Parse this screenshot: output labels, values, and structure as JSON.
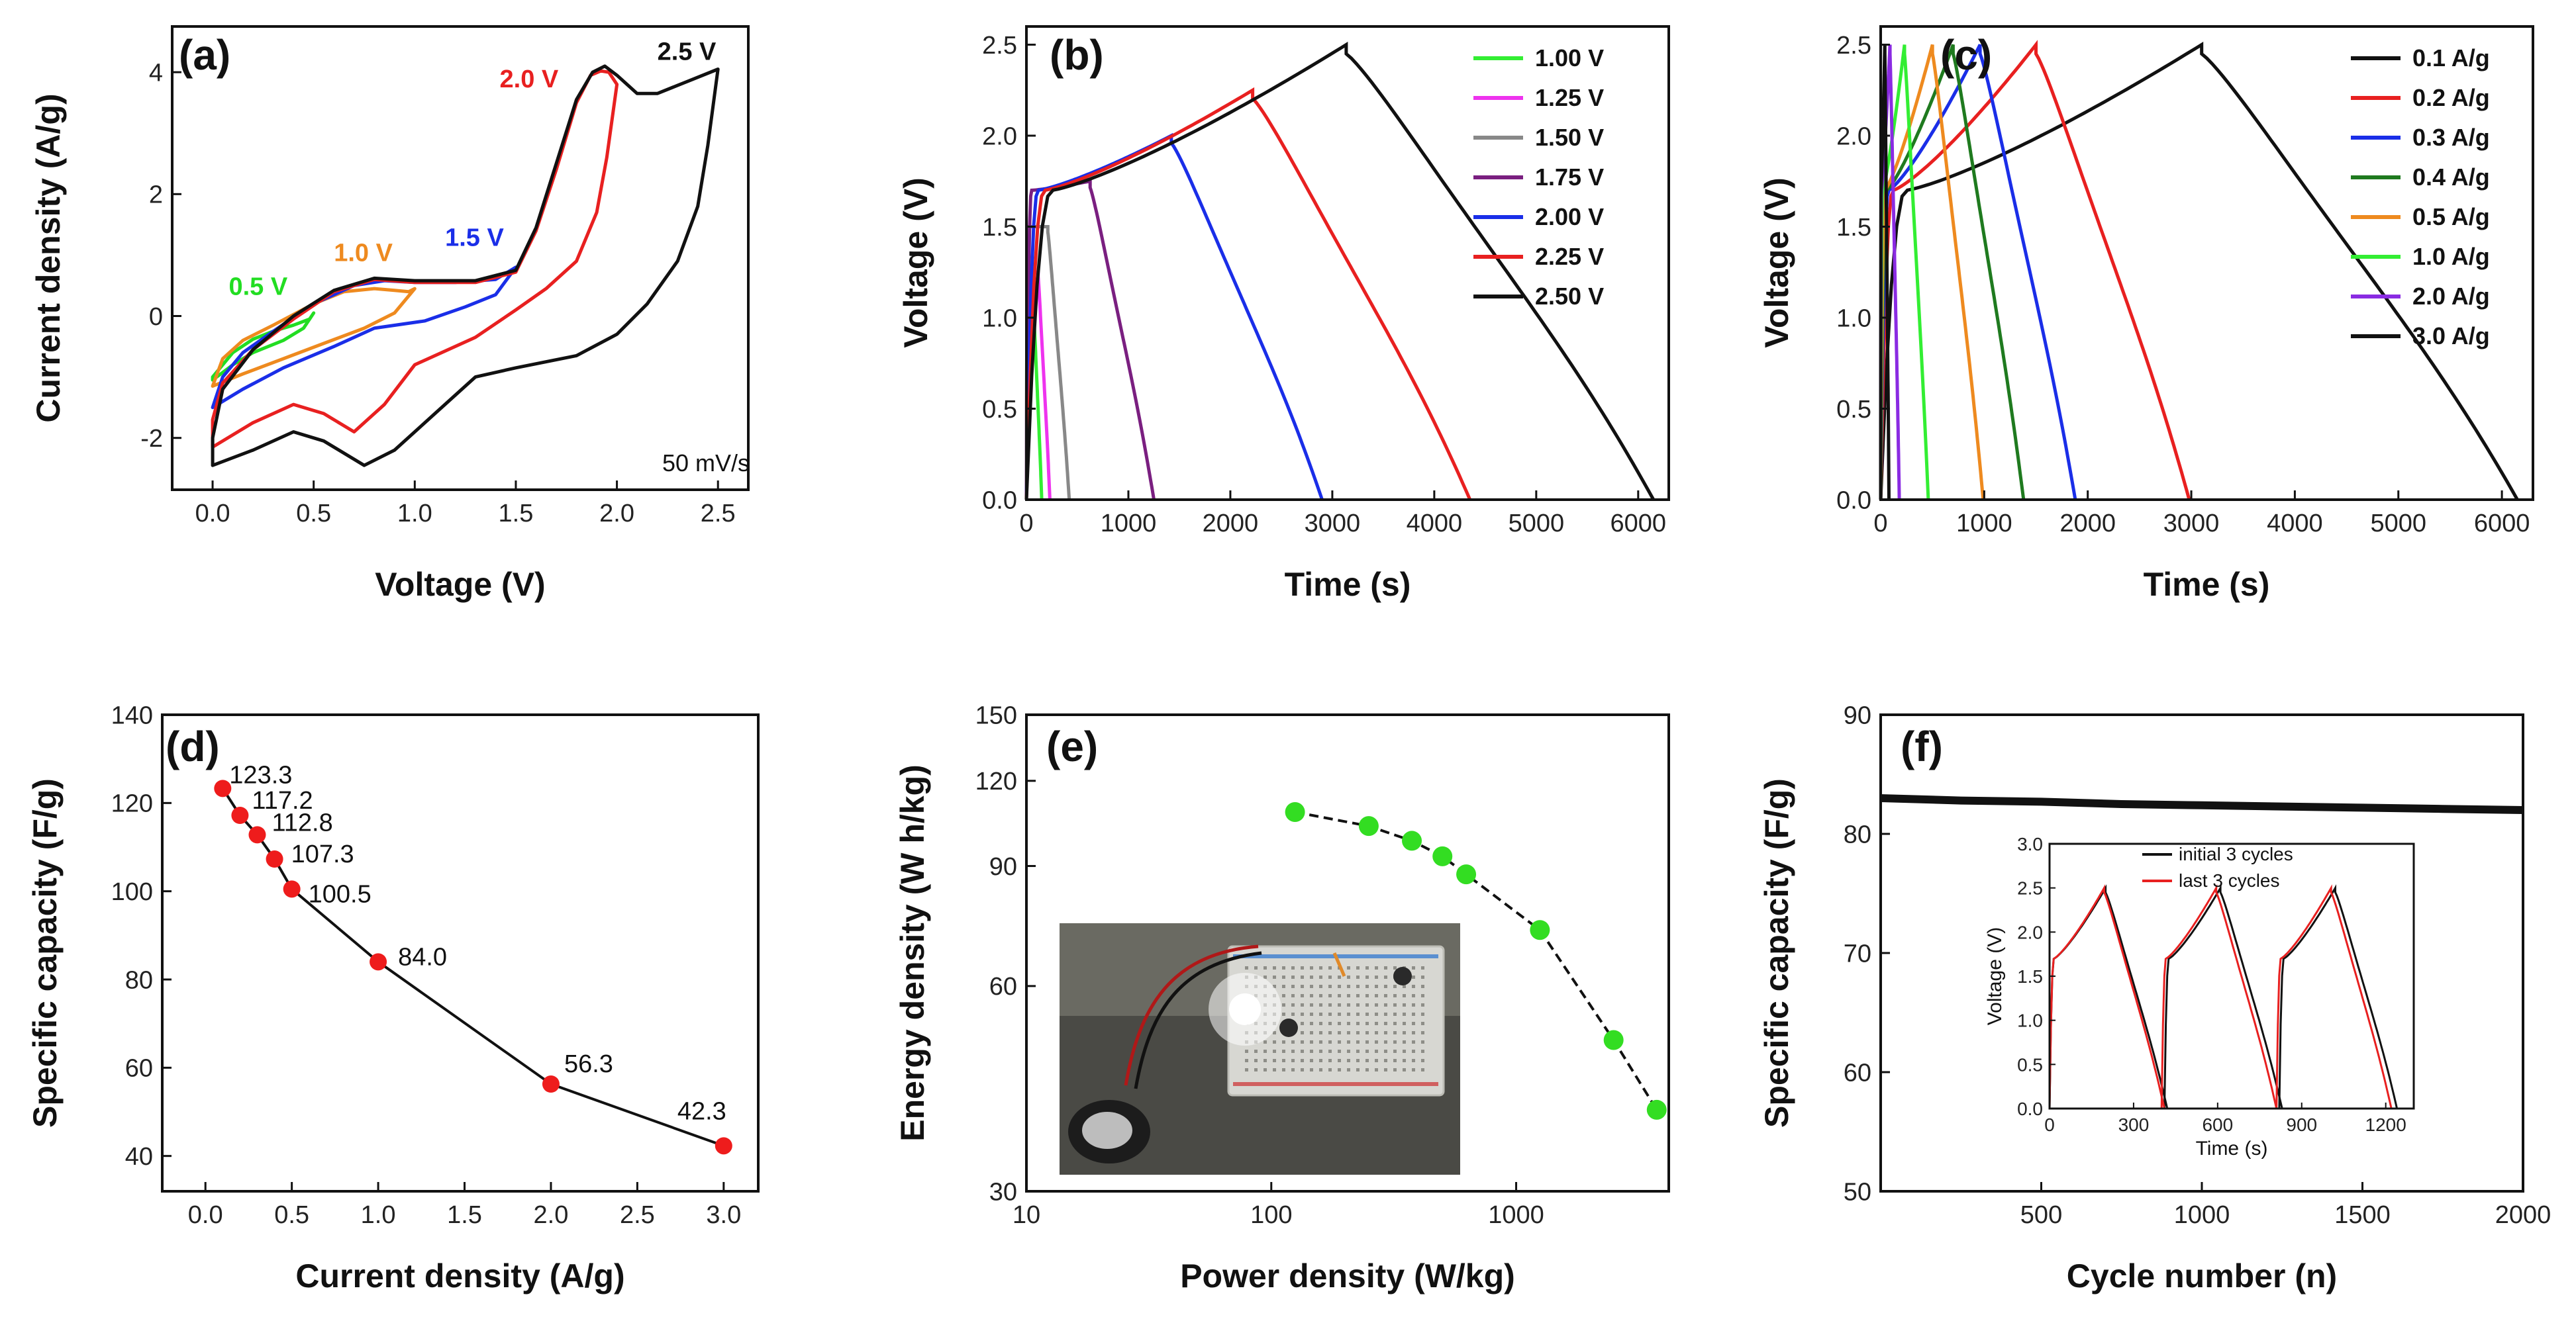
{
  "chart_data": [
    {
      "id": "a",
      "type": "line",
      "panel_label": "(a)",
      "xlabel": "Voltage (V)",
      "ylabel": "Current density (A/g)",
      "xlim": [
        -0.2,
        2.65
      ],
      "ylim": [
        -2.85,
        4.75
      ],
      "xticks": [
        "0.0",
        "0.5",
        "1.0",
        "1.5",
        "2.0",
        "2.5"
      ],
      "xtick_values": [
        0,
        0.5,
        1.0,
        1.5,
        2.0,
        2.5
      ],
      "yticks": [
        "-2",
        "0",
        "2",
        "4"
      ],
      "ytick_values": [
        -2,
        0,
        2,
        4
      ],
      "note": "50 mV/s",
      "series": [
        {
          "name": "0.5 V",
          "label": "0.5 V",
          "color": "#22dd22",
          "label_at": [
            0.08,
            0.35
          ],
          "upper": [
            [
              0.0,
              -1.0
            ],
            [
              0.1,
              -0.6
            ],
            [
              0.2,
              -0.38
            ],
            [
              0.3,
              -0.25
            ],
            [
              0.4,
              -0.15
            ],
            [
              0.48,
              -0.05
            ],
            [
              0.5,
              0.05
            ]
          ],
          "lower": [
            [
              0.5,
              0.05
            ],
            [
              0.45,
              -0.2
            ],
            [
              0.35,
              -0.4
            ],
            [
              0.2,
              -0.6
            ],
            [
              0.1,
              -0.8
            ],
            [
              0.0,
              -1.05
            ]
          ]
        },
        {
          "name": "1.0 V",
          "label": "1.0 V",
          "color": "#ee8a1f",
          "label_at": [
            0.6,
            0.9
          ],
          "upper": [
            [
              0.0,
              -1.15
            ],
            [
              0.05,
              -0.7
            ],
            [
              0.15,
              -0.4
            ],
            [
              0.3,
              -0.15
            ],
            [
              0.5,
              0.2
            ],
            [
              0.65,
              0.4
            ],
            [
              0.8,
              0.45
            ],
            [
              0.9,
              0.42
            ],
            [
              0.97,
              0.4
            ],
            [
              1.0,
              0.45
            ]
          ],
          "lower": [
            [
              1.0,
              0.45
            ],
            [
              0.9,
              0.05
            ],
            [
              0.75,
              -0.2
            ],
            [
              0.55,
              -0.45
            ],
            [
              0.35,
              -0.7
            ],
            [
              0.15,
              -0.95
            ],
            [
              0.0,
              -1.15
            ]
          ]
        },
        {
          "name": "1.5 V",
          "label": "1.5 V",
          "color": "#1a2ee8",
          "label_at": [
            1.15,
            1.15
          ],
          "upper": [
            [
              0.0,
              -1.5
            ],
            [
              0.05,
              -1.0
            ],
            [
              0.15,
              -0.6
            ],
            [
              0.3,
              -0.25
            ],
            [
              0.5,
              0.2
            ],
            [
              0.7,
              0.5
            ],
            [
              0.85,
              0.58
            ],
            [
              1.0,
              0.55
            ],
            [
              1.2,
              0.55
            ],
            [
              1.4,
              0.6
            ],
            [
              1.5,
              0.8
            ]
          ],
          "lower": [
            [
              1.5,
              0.8
            ],
            [
              1.4,
              0.35
            ],
            [
              1.25,
              0.15
            ],
            [
              1.05,
              -0.08
            ],
            [
              0.8,
              -0.2
            ],
            [
              0.6,
              -0.5
            ],
            [
              0.35,
              -0.85
            ],
            [
              0.15,
              -1.2
            ],
            [
              0.0,
              -1.5
            ]
          ]
        },
        {
          "name": "2.0 V",
          "label": "2.0 V",
          "color": "#e82020",
          "label_at": [
            1.42,
            3.75
          ],
          "upper": [
            [
              0.0,
              -1.7
            ],
            [
              0.05,
              -1.1
            ],
            [
              0.2,
              -0.55
            ],
            [
              0.4,
              -0.05
            ],
            [
              0.6,
              0.4
            ],
            [
              0.8,
              0.6
            ],
            [
              1.0,
              0.55
            ],
            [
              1.3,
              0.55
            ],
            [
              1.5,
              0.72
            ],
            [
              1.6,
              1.4
            ],
            [
              1.7,
              2.4
            ],
            [
              1.8,
              3.5
            ],
            [
              1.87,
              3.95
            ],
            [
              1.92,
              4.02
            ],
            [
              1.96,
              4.0
            ],
            [
              2.0,
              3.8
            ]
          ],
          "lower": [
            [
              2.0,
              3.8
            ],
            [
              1.95,
              2.6
            ],
            [
              1.9,
              1.7
            ],
            [
              1.8,
              0.9
            ],
            [
              1.65,
              0.45
            ],
            [
              1.5,
              0.1
            ],
            [
              1.3,
              -0.35
            ],
            [
              1.0,
              -0.8
            ],
            [
              0.85,
              -1.45
            ],
            [
              0.7,
              -1.9
            ],
            [
              0.55,
              -1.6
            ],
            [
              0.4,
              -1.45
            ],
            [
              0.2,
              -1.75
            ],
            [
              0.0,
              -2.15
            ]
          ]
        },
        {
          "name": "2.5 V",
          "label": "2.5 V",
          "color": "#111111",
          "label_at": [
            2.2,
            4.2
          ],
          "upper": [
            [
              0.0,
              -2.0
            ],
            [
              0.05,
              -1.2
            ],
            [
              0.2,
              -0.55
            ],
            [
              0.4,
              0.0
            ],
            [
              0.6,
              0.42
            ],
            [
              0.8,
              0.62
            ],
            [
              1.0,
              0.58
            ],
            [
              1.3,
              0.58
            ],
            [
              1.5,
              0.75
            ],
            [
              1.6,
              1.45
            ],
            [
              1.7,
              2.5
            ],
            [
              1.8,
              3.55
            ],
            [
              1.88,
              4.0
            ],
            [
              1.94,
              4.1
            ],
            [
              2.0,
              3.95
            ],
            [
              2.1,
              3.65
            ],
            [
              2.2,
              3.65
            ],
            [
              2.35,
              3.85
            ],
            [
              2.5,
              4.05
            ]
          ],
          "lower": [
            [
              2.5,
              4.05
            ],
            [
              2.45,
              2.8
            ],
            [
              2.4,
              1.8
            ],
            [
              2.3,
              0.9
            ],
            [
              2.15,
              0.2
            ],
            [
              2.0,
              -0.3
            ],
            [
              1.8,
              -0.65
            ],
            [
              1.5,
              -0.85
            ],
            [
              1.3,
              -1.0
            ],
            [
              1.1,
              -1.6
            ],
            [
              0.9,
              -2.2
            ],
            [
              0.75,
              -2.45
            ],
            [
              0.55,
              -2.05
            ],
            [
              0.4,
              -1.9
            ],
            [
              0.2,
              -2.2
            ],
            [
              0.0,
              -2.45
            ]
          ]
        }
      ]
    },
    {
      "id": "b",
      "type": "line",
      "panel_label": "(b)",
      "xlabel": "Time (s)",
      "ylabel": "Voltage (V)",
      "xlim": [
        0,
        6300
      ],
      "ylim": [
        0,
        2.6
      ],
      "xticks": [
        "0",
        "1000",
        "2000",
        "3000",
        "4000",
        "5000",
        "6000"
      ],
      "xtick_values": [
        0,
        1000,
        2000,
        3000,
        4000,
        5000,
        6000
      ],
      "yticks": [
        "0.0",
        "0.5",
        "1.0",
        "1.5",
        "2.0",
        "2.5"
      ],
      "ytick_values": [
        0,
        0.5,
        1.0,
        1.5,
        2.0,
        2.5
      ],
      "series": [
        {
          "name": "1.00 V",
          "color": "#33ee33",
          "vmax": 1.0,
          "t_end": 150
        },
        {
          "name": "1.25 V",
          "color": "#ee33ee",
          "vmax": 1.25,
          "t_end": 230
        },
        {
          "name": "1.50 V",
          "color": "#888888",
          "vmax": 1.5,
          "t_end": 420
        },
        {
          "name": "1.75 V",
          "color": "#7a1f80",
          "vmax": 1.75,
          "t_end": 1250
        },
        {
          "name": "2.00 V",
          "color": "#1a2ee8",
          "vmax": 2.0,
          "t_end": 2900
        },
        {
          "name": "2.25 V",
          "color": "#e82020",
          "vmax": 2.25,
          "t_end": 4350
        },
        {
          "name": "2.50 V",
          "color": "#111111",
          "vmax": 2.5,
          "t_end": 6150
        }
      ]
    },
    {
      "id": "c",
      "type": "line",
      "panel_label": "(c)",
      "xlabel": "Time (s)",
      "ylabel": "Voltage (V)",
      "xlim": [
        0,
        6300
      ],
      "ylim": [
        0,
        2.6
      ],
      "xticks": [
        "0",
        "1000",
        "2000",
        "3000",
        "4000",
        "5000",
        "6000"
      ],
      "xtick_values": [
        0,
        1000,
        2000,
        3000,
        4000,
        5000,
        6000
      ],
      "yticks": [
        "0.0",
        "0.5",
        "1.0",
        "1.5",
        "2.0",
        "2.5"
      ],
      "ytick_values": [
        0,
        0.5,
        1.0,
        1.5,
        2.0,
        2.5
      ],
      "series": [
        {
          "name": "0.1 A/g",
          "color": "#111111",
          "t_peak": 3100,
          "t_end": 6150
        },
        {
          "name": "0.2 A/g",
          "color": "#e82020",
          "t_peak": 1500,
          "t_end": 2980
        },
        {
          "name": "0.3 A/g",
          "color": "#1a2ee8",
          "t_peak": 960,
          "t_end": 1880
        },
        {
          "name": "0.4 A/g",
          "color": "#1f7a1f",
          "t_peak": 700,
          "t_end": 1380
        },
        {
          "name": "0.5 A/g",
          "color": "#ee8a1f",
          "t_peak": 500,
          "t_end": 990
        },
        {
          "name": "1.0 A/g",
          "color": "#33ee33",
          "t_peak": 230,
          "t_end": 460
        },
        {
          "name": "2.0 A/g",
          "color": "#8a2be2",
          "t_peak": 90,
          "t_end": 180
        },
        {
          "name": "3.0 A/g",
          "color": "#111111",
          "t_peak": 40,
          "t_end": 80
        }
      ]
    },
    {
      "id": "d",
      "type": "scatter",
      "panel_label": "(d)",
      "xlabel": "Current density (A/g)",
      "ylabel": "Specific capacity (F/g)",
      "xlim": [
        -0.25,
        3.2
      ],
      "ylim": [
        32,
        140
      ],
      "xticks": [
        "0.0",
        "0.5",
        "1.0",
        "1.5",
        "2.0",
        "2.5",
        "3.0"
      ],
      "xtick_values": [
        0,
        0.5,
        1.0,
        1.5,
        2.0,
        2.5,
        3.0
      ],
      "yticks": [
        "40",
        "60",
        "80",
        "100",
        "120",
        "140"
      ],
      "ytick_values": [
        40,
        60,
        80,
        100,
        120,
        140
      ],
      "x": [
        0.1,
        0.2,
        0.3,
        0.4,
        0.5,
        1.0,
        2.0,
        3.0
      ],
      "y": [
        123.3,
        117.2,
        112.8,
        107.3,
        100.5,
        84.0,
        56.3,
        42.3
      ],
      "labels": [
        "123.3",
        "117.2",
        "112.8",
        "107.3",
        "100.5",
        "84.0",
        "56.3",
        "42.3"
      ],
      "marker_color": "#ee1c1c"
    },
    {
      "id": "e",
      "type": "scatter",
      "panel_label": "(e)",
      "xlabel": "Power density (W/kg)",
      "ylabel": "Energy density (W h/kg)",
      "xscale": "log",
      "yscale": "log",
      "xlim": [
        10,
        4200
      ],
      "ylim": [
        30,
        150
      ],
      "xticks": [
        "10",
        "100",
        "1000"
      ],
      "xtick_values": [
        10,
        100,
        1000
      ],
      "yticks": [
        "30",
        "60",
        "90",
        "120",
        "150"
      ],
      "ytick_values": [
        30,
        60,
        90,
        120,
        150
      ],
      "x": [
        125,
        250,
        375,
        500,
        625,
        1250,
        2500,
        3750
      ],
      "y": [
        108,
        103,
        98,
        93,
        87.5,
        72.5,
        50,
        39.5
      ],
      "marker_color": "#33dd22",
      "inset": "photo of a coin cell powering an LED on a breadboard"
    },
    {
      "id": "f",
      "type": "line",
      "panel_label": "(f)",
      "xlabel": "Cycle number (n)",
      "ylabel": "Specific capacity (F/g)",
      "xlim": [
        0,
        2000
      ],
      "ylim": [
        50,
        90
      ],
      "xticks": [
        "500",
        "1000",
        "1500",
        "2000"
      ],
      "xtick_values": [
        500,
        1000,
        1500,
        2000
      ],
      "yticks": [
        "50",
        "60",
        "70",
        "80",
        "90"
      ],
      "ytick_values": [
        50,
        60,
        70,
        80,
        90
      ],
      "x": [
        0,
        250,
        500,
        750,
        1000,
        1250,
        1500,
        1750,
        2000
      ],
      "y": [
        83.0,
        82.8,
        82.7,
        82.5,
        82.4,
        82.3,
        82.2,
        82.1,
        82.0
      ],
      "color": "#111111",
      "inset": {
        "xlabel": "Time (s)",
        "ylabel": "Voltage (V)",
        "xlim": [
          0,
          1300
        ],
        "ylim": [
          0,
          3.0
        ],
        "xticks": [
          "0",
          "300",
          "600",
          "900",
          "1200"
        ],
        "xtick_values": [
          0,
          300,
          600,
          900,
          1200
        ],
        "yticks": [
          "0.0",
          "0.5",
          "1.0",
          "1.5",
          "2.0",
          "2.5",
          "3.0"
        ],
        "ytick_values": [
          0,
          0.5,
          1.0,
          1.5,
          2.0,
          2.5,
          3.0
        ],
        "series": [
          {
            "name": "initial 3 cycles",
            "color": "#111111",
            "starts": [
              0,
              410,
              820
            ],
            "t_peak": 200,
            "t_end": 420
          },
          {
            "name": "last 3 cycles",
            "color": "#e82020",
            "starts": [
              0,
              400,
              810
            ],
            "t_peak": 195,
            "t_end": 410
          }
        ]
      }
    }
  ]
}
